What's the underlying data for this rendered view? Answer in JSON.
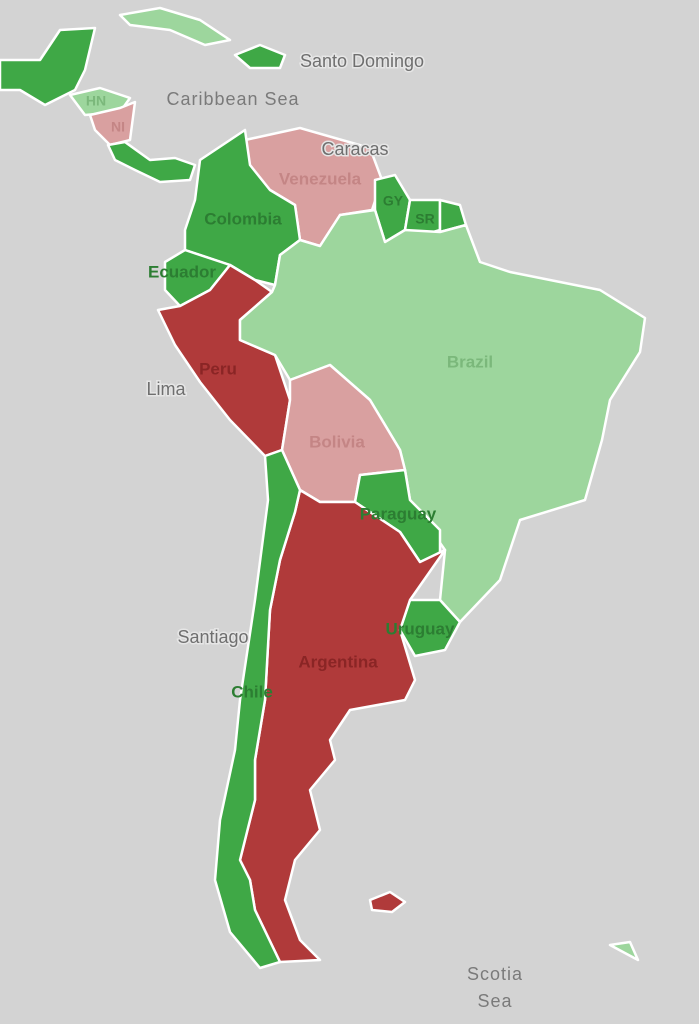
{
  "countries": [
    "Venezuela",
    "Colombia",
    "GY",
    "SR",
    "Ecuador",
    "Peru",
    "Brazil",
    "Bolivia",
    "Paraguay",
    "Uruguay",
    "Argentina",
    "Chile",
    "HN",
    "NI"
  ],
  "cities": [
    "Santo Domingo",
    "Caracas",
    "Lima",
    "Santiago"
  ],
  "seas": {
    "caribbean": "Caribbean Sea",
    "scotia": [
      "Scotia",
      "Sea"
    ]
  }
}
